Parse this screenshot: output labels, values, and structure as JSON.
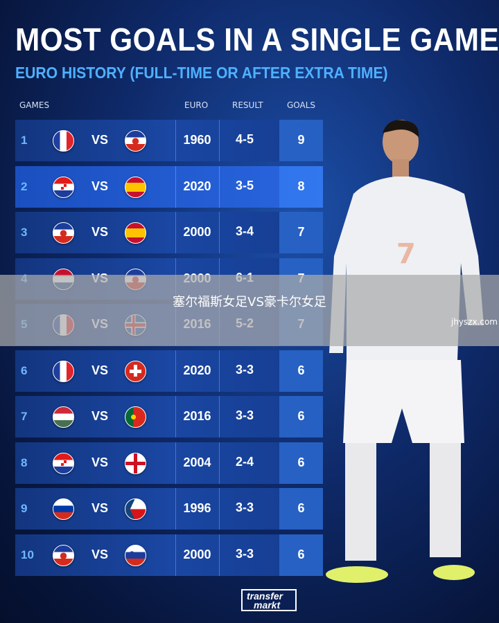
{
  "title": "MOST GOALS IN A SINGLE GAME",
  "subtitle": "EURO HISTORY (FULL-TIME OR AFTER EXTRA TIME)",
  "headers": {
    "games": "GAMES",
    "euro": "EURO",
    "result": "RESULT",
    "goals": "GOALS"
  },
  "vs": "VS",
  "rows": [
    {
      "rank": "1",
      "team1": "France",
      "team2": "Yugoslavia",
      "euro": "1960",
      "result": "4-5",
      "goals": "9"
    },
    {
      "rank": "2",
      "team1": "Croatia",
      "team2": "Spain",
      "euro": "2020",
      "result": "3-5",
      "goals": "8"
    },
    {
      "rank": "3",
      "team1": "Yugoslavia",
      "team2": "Spain",
      "euro": "2000",
      "result": "3-4",
      "goals": "7"
    },
    {
      "rank": "4",
      "team1": "Netherlands",
      "team2": "Yugoslavia",
      "euro": "2000",
      "result": "6-1",
      "goals": "7"
    },
    {
      "rank": "5",
      "team1": "France",
      "team2": "Iceland",
      "euro": "2016",
      "result": "5-2",
      "goals": "7"
    },
    {
      "rank": "6",
      "team1": "France",
      "team2": "Switzerland",
      "euro": "2020",
      "result": "3-3",
      "goals": "6"
    },
    {
      "rank": "7",
      "team1": "Hungary",
      "team2": "Portugal",
      "euro": "2016",
      "result": "3-3",
      "goals": "6"
    },
    {
      "rank": "8",
      "team1": "Croatia",
      "team2": "England",
      "euro": "2004",
      "result": "2-4",
      "goals": "6"
    },
    {
      "rank": "9",
      "team1": "Russia",
      "team2": "Czech Republic",
      "euro": "1996",
      "result": "3-3",
      "goals": "6"
    },
    {
      "rank": "10",
      "team1": "Yugoslavia",
      "team2": "Slovenia",
      "euro": "2000",
      "result": "3-3",
      "goals": "6"
    }
  ],
  "overlay_text": "塞尔福斯女足VS豪卡尔女足",
  "watermark": "jhyszx.com",
  "logo": {
    "line1": "transfer",
    "line2": "markt"
  },
  "colors": {
    "accent": "#4fb0ff",
    "background": "#0f2a6a"
  }
}
